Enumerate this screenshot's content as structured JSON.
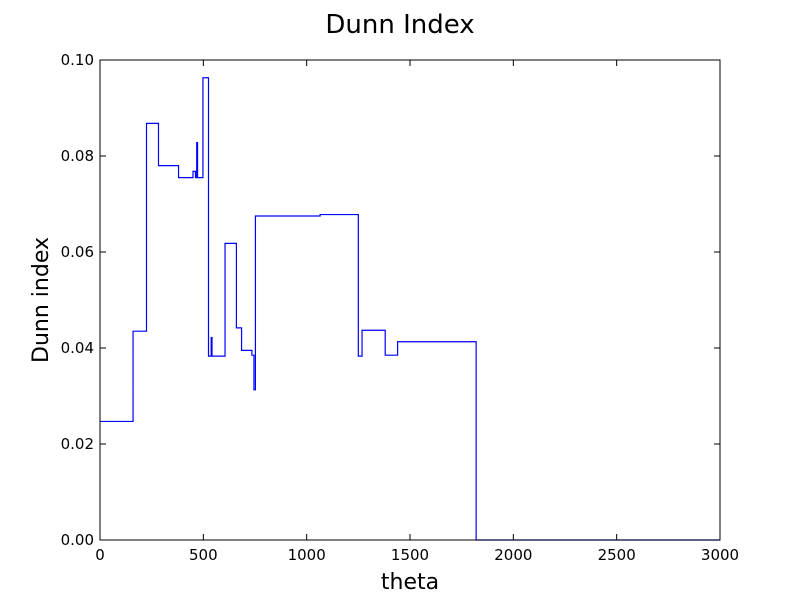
{
  "chart_data": {
    "type": "line",
    "title": "Dunn Index",
    "xlabel": "theta",
    "ylabel": "Dunn index",
    "xlim": [
      0,
      3000
    ],
    "ylim": [
      0,
      0.1
    ],
    "xticks": [
      0,
      500,
      1000,
      1500,
      2000,
      2500,
      3000
    ],
    "yticks": [
      0.0,
      0.02,
      0.04,
      0.06,
      0.08,
      0.1
    ],
    "ytick_labels": [
      "0.00",
      "0.02",
      "0.04",
      "0.06",
      "0.08",
      "0.10"
    ],
    "grid": false,
    "line_color": "#0000ff",
    "series": [
      {
        "step": "post",
        "points": [
          [
            0,
            0.0247
          ],
          [
            160,
            0.0435
          ],
          [
            225,
            0.0868
          ],
          [
            283,
            0.078
          ],
          [
            380,
            0.0755
          ],
          [
            450,
            0.0768
          ],
          [
            462,
            0.0755
          ],
          [
            468,
            0.0828
          ],
          [
            472,
            0.0755
          ],
          [
            498,
            0.0963
          ],
          [
            525,
            0.0383
          ],
          [
            538,
            0.0422
          ],
          [
            542,
            0.0383
          ],
          [
            605,
            0.0618
          ],
          [
            660,
            0.0442
          ],
          [
            685,
            0.0395
          ],
          [
            735,
            0.0385
          ],
          [
            745,
            0.0313
          ],
          [
            752,
            0.0675
          ],
          [
            1065,
            0.0678
          ],
          [
            1250,
            0.0383
          ],
          [
            1268,
            0.0437
          ],
          [
            1380,
            0.0385
          ],
          [
            1440,
            0.0413
          ],
          [
            1820,
            0.0
          ],
          [
            3000,
            0.0
          ]
        ]
      }
    ]
  }
}
